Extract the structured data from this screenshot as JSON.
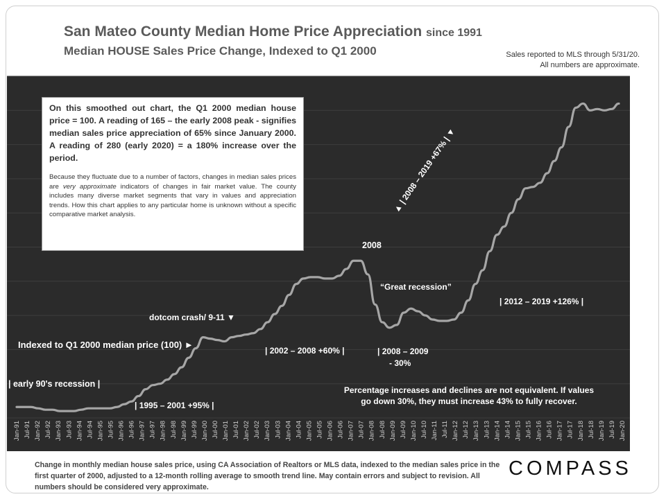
{
  "header": {
    "title": "San Mateo County Median Home Price Appreciation",
    "title_suffix": "since 1991",
    "subtitle": "Median HOUSE Sales Price Change, Indexed to Q1 2000",
    "note_line1": "Sales reported to MLS through 5/31/20.",
    "note_line2": "All numbers are approximate."
  },
  "infobox": {
    "main": "On this smoothed out chart, the Q1 2000 median house price = 100. A reading of 165 – the early 2008 peak - signifies median sales price appreciation of 65% since January 2000.  A reading of 280 (early 2020) = a 180% increase over the period.",
    "small_before": "Because they fluctuate due to a number of factors, changes in median sales prices are ",
    "small_italic": "very approximate",
    "small_after": " indicators of changes in fair market value. The county includes many diverse market segments that vary in values and appreciation trends. How this chart applies to any particular home is unknown without a specific comparative market analysis."
  },
  "annotations": {
    "early90s": "| early 90's recession |",
    "r1995": "| 1995 – 2001 +95% |",
    "indexed": "Indexed to Q1 2000 median price (100) ►",
    "dotcom": "dotcom crash/ 9-11 ▼",
    "r2002": "| 2002 – 2008 +60% |",
    "y2008": "2008",
    "great": "“Great recession”",
    "r2008a": "| 2008 – 2009",
    "r2008b": "- 30%",
    "r2012": "| 2012 – 2019 +126% |",
    "r2019": "▲  | 2008 – 2019 +67% |  ▼",
    "pct1": "Percentage increases and declines are not equivalent. If values",
    "pct2": "go down 30%, they must increase 43% to fully recover."
  },
  "footer": {
    "text": "Change in monthly median house sales price, using CA Association of Realtors or MLS data, indexed to the median sales price in the first quarter of 2000, adjusted to a 12-month rolling average to smooth trend line.  May contain errors and subject to revision. All numbers should be considered very approximate."
  },
  "brand": {
    "logo": "COMPASS"
  },
  "colors": {
    "plot_bg": "#2b2b2b",
    "line": "#a6a6a6",
    "axis_text": "#333333",
    "annotation": "#ffffff"
  },
  "chart_data": {
    "type": "line",
    "title": "San Mateo County Median Home Price Appreciation since 1991",
    "subtitle": "Median HOUSE Sales Price Change, Indexed to Q1 2000",
    "ylim": [
      50,
      300
    ],
    "yticks": [
      50,
      75,
      100,
      125,
      150,
      175,
      200,
      225,
      250,
      275,
      300
    ],
    "x_tick_labels": [
      "Jan-91",
      "Jul-91",
      "Jan-92",
      "Jul-92",
      "Jan-93",
      "Jul-93",
      "Jan-94",
      "Jul-94",
      "Jan-95",
      "Jul-95",
      "Jan-96",
      "Jul-96",
      "Jan-97",
      "Jul-97",
      "Jan-98",
      "Jul-98",
      "Jan-99",
      "Jul-99",
      "Jan-00",
      "Jul-00",
      "Jan-01",
      "Jul-01",
      "Jan-02",
      "Jul-02",
      "Jan-03",
      "Jul-03",
      "Jan-04",
      "Jul-04",
      "Jan-05",
      "Jul-05",
      "Jan-06",
      "Jul-06",
      "Jan-07",
      "Jul-07",
      "Jan-08",
      "Jul-08",
      "Jan-09",
      "Jul-09",
      "Jan-10",
      "Jul-10",
      "Jan-11",
      "Jul-11",
      "Jan-12",
      "Jul-12",
      "Jan-13",
      "Jul-13",
      "Jan-14",
      "Jul-14",
      "Jan-15",
      "Jul-15",
      "Jan-16",
      "Jul-16",
      "Jan-17",
      "Jul-17",
      "Jan-18",
      "Jul-18",
      "Jan-19",
      "Jul-19",
      "Jan-20"
    ],
    "grid": true,
    "series": [
      {
        "values": [
          58,
          58,
          58,
          57,
          56,
          56,
          55,
          55,
          55,
          56,
          57,
          57,
          57,
          57,
          58,
          60,
          62,
          66,
          71,
          74,
          75,
          78,
          82,
          87,
          94,
          101,
          109,
          108,
          107,
          106,
          109,
          110,
          111,
          112,
          115,
          120,
          126,
          132,
          140,
          148,
          152,
          153,
          153,
          152,
          152,
          154,
          159,
          165,
          165,
          155,
          133,
          120,
          116,
          118,
          127,
          130,
          128,
          125,
          122,
          121,
          121,
          122,
          127,
          136,
          148,
          158,
          172,
          184,
          190,
          200,
          210,
          218,
          219,
          222,
          229,
          238,
          248,
          263,
          277,
          280,
          275,
          276,
          275,
          276,
          280
        ]
      }
    ]
  }
}
